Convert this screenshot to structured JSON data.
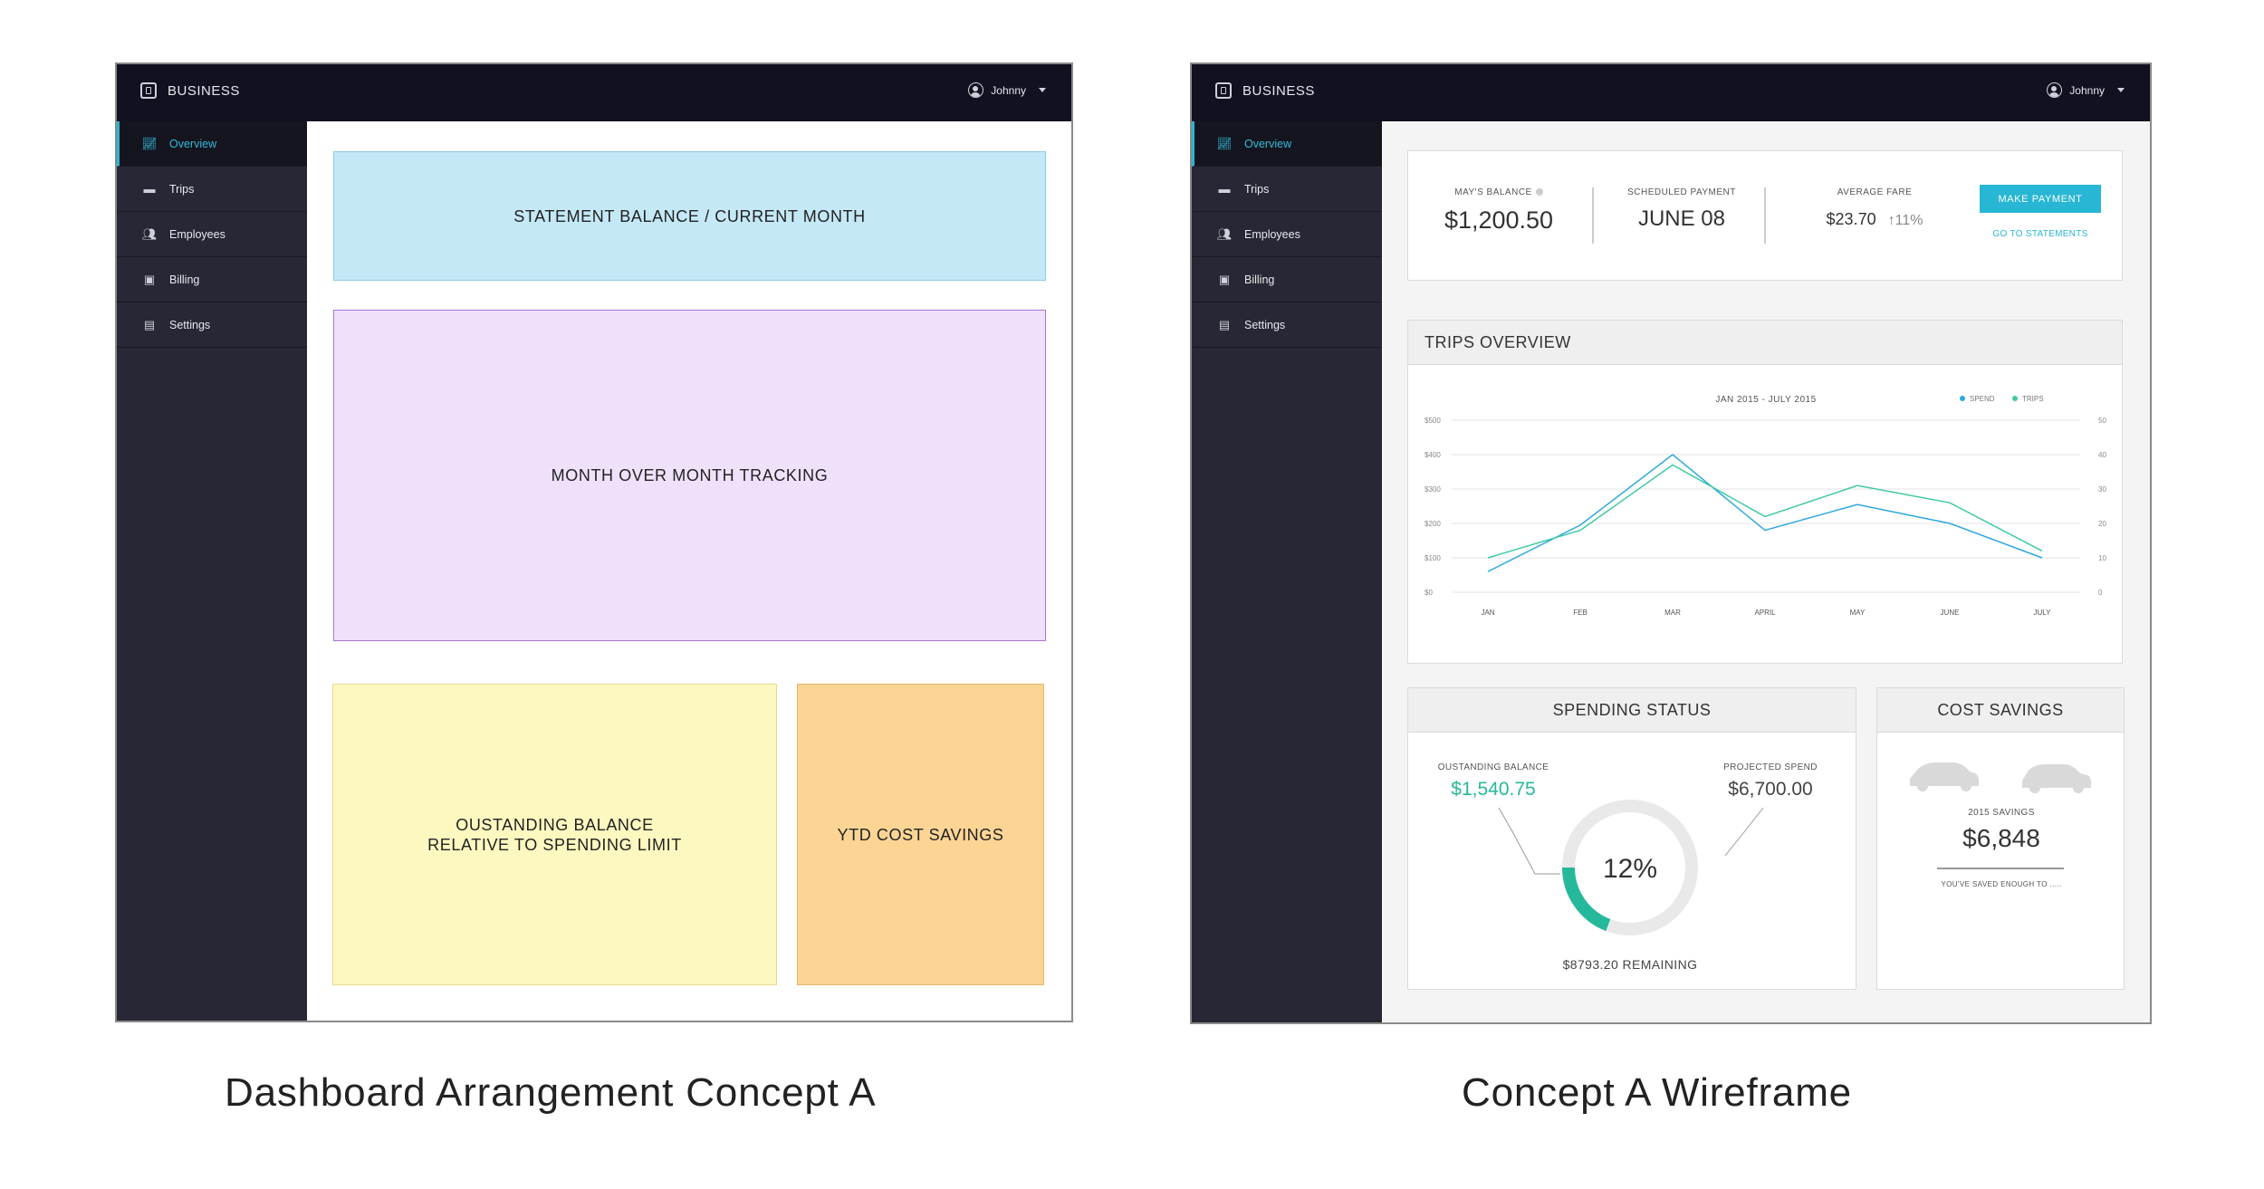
{
  "concept_a": {
    "brand": "BUSINESS",
    "user": "Johnny",
    "nav": [
      {
        "label": "Overview",
        "icon": "chart-line-icon",
        "active": true
      },
      {
        "label": "Trips",
        "icon": "car-icon",
        "active": false
      },
      {
        "label": "Employees",
        "icon": "people-icon",
        "active": false
      },
      {
        "label": "Billing",
        "icon": "briefcase-icon",
        "active": false
      },
      {
        "label": "Settings",
        "icon": "settings-icon",
        "active": false
      }
    ],
    "blocks": {
      "statement": "STATEMENT BALANCE / CURRENT MONTH",
      "month_tracking": "MONTH OVER MONTH TRACKING",
      "outstanding_line1": "OUSTANDING BALANCE",
      "outstanding_line2": "RELATIVE TO SPENDING LIMIT",
      "ytd": "YTD COST SAVINGS"
    },
    "caption": "Dashboard Arrangement Concept A"
  },
  "concept_b": {
    "brand": "BUSINESS",
    "user": "Johnny",
    "nav": [
      {
        "label": "Overview",
        "icon": "chart-line-icon",
        "active": true
      },
      {
        "label": "Trips",
        "icon": "car-icon",
        "active": false
      },
      {
        "label": "Employees",
        "icon": "people-icon",
        "active": false
      },
      {
        "label": "Billing",
        "icon": "briefcase-icon",
        "active": false
      },
      {
        "label": "Settings",
        "icon": "settings-icon",
        "active": false
      }
    ],
    "summary": {
      "balance_label": "MAY'S BALANCE",
      "balance_value": "$1,200.50",
      "scheduled_label": "SCHEDULED PAYMENT",
      "scheduled_value": "JUNE 08",
      "fare_label": "AVERAGE FARE",
      "fare_value": "$23.70",
      "fare_change": "11%",
      "make_payment": "MAKE PAYMENT",
      "go_statements": "GO TO STATEMENTS"
    },
    "trips_overview": {
      "title": "TRIPS OVERVIEW",
      "chart_data": {
        "type": "line",
        "title": "JAN 2015 - JULY 2015",
        "categories": [
          "JAN",
          "FEB",
          "MAR",
          "APRIL",
          "MAY",
          "JUNE",
          "JULY"
        ],
        "y_left_ticks": [
          "$500",
          "$400",
          "$300",
          "$200",
          "$100",
          "$0"
        ],
        "y_right_ticks": [
          "50",
          "40",
          "30",
          "20",
          "10",
          "0"
        ],
        "y_left_range": [
          0,
          500
        ],
        "y_right_range": [
          0,
          50
        ],
        "legend_position": "top-right",
        "series": [
          {
            "name": "SPEND",
            "color": "#2fa8e0",
            "axis": "left",
            "values": [
              60,
              195,
              400,
              180,
              255,
              200,
              100
            ]
          },
          {
            "name": "TRIPS",
            "color": "#3ec9a4",
            "axis": "right",
            "values": [
              10,
              18,
              37,
              22,
              31,
              26,
              12
            ]
          }
        ],
        "grid": true
      }
    },
    "spending_status": {
      "title": "SPENDING STATUS",
      "outstanding_label": "OUSTANDING BALANCE",
      "outstanding_value": "$1,540.75",
      "projected_label": "PROJECTED SPEND",
      "projected_value": "$6,700.00",
      "percent_text": "12%",
      "percent_value": 12,
      "remaining": "$8793.20 REMAINING",
      "accent": "#26b89a"
    },
    "cost_savings": {
      "title": "COST SAVINGS",
      "savings_label": "2015 SAVINGS",
      "savings_value": "$6,848",
      "saved_enough": "YOU'VE SAVED ENOUGH TO ....."
    },
    "caption": "Concept A Wireframe"
  }
}
